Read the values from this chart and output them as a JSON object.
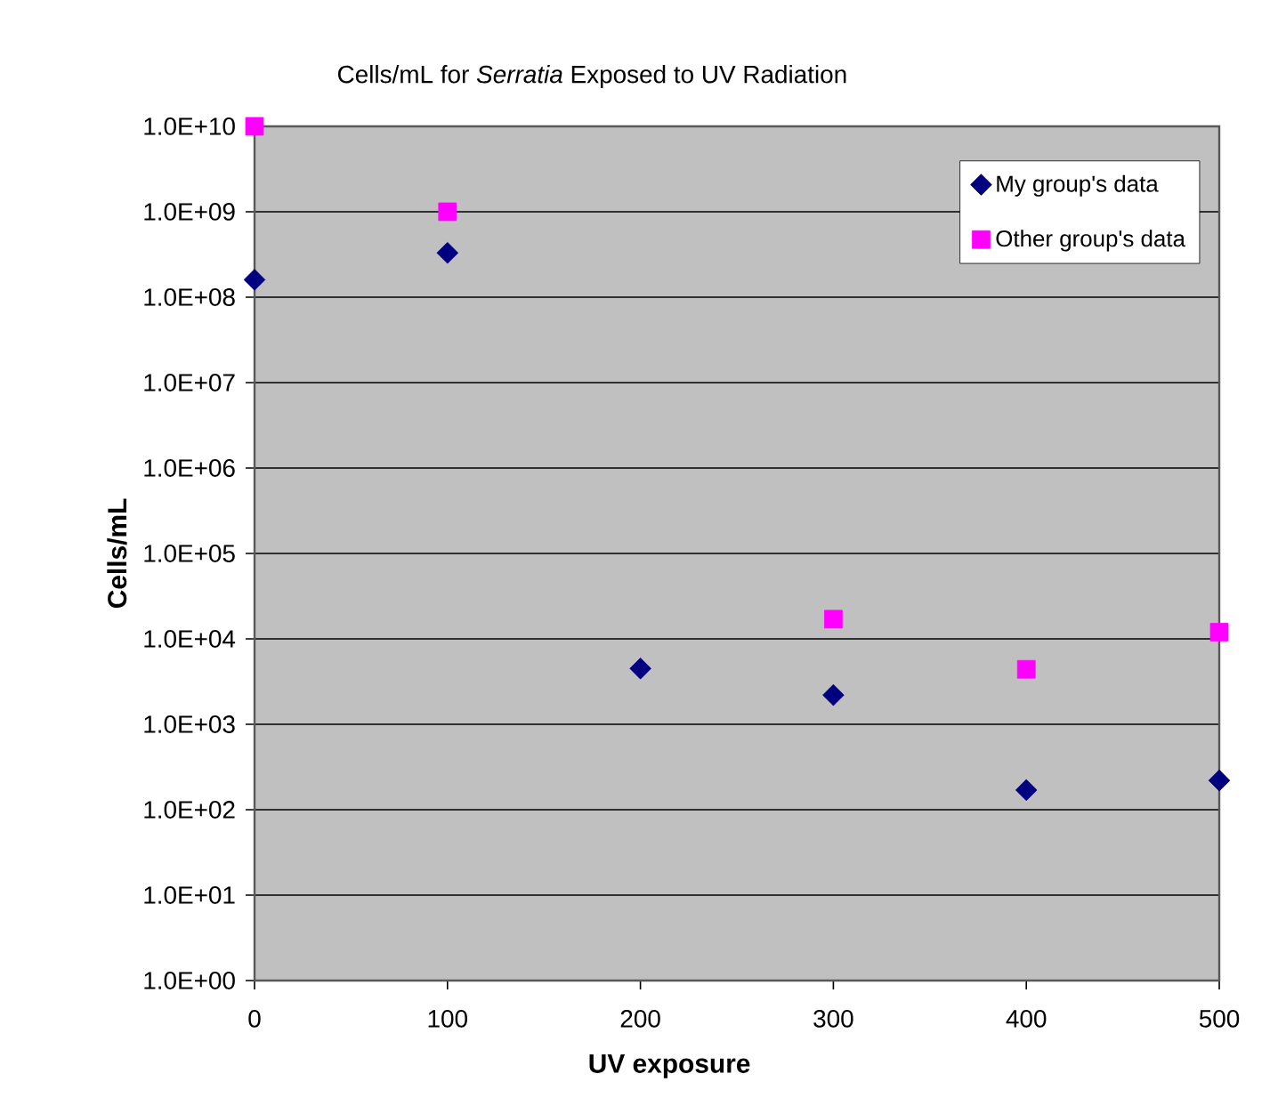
{
  "chart_data": {
    "type": "scatter",
    "title": "Cells/mL for *Serratia* Exposed to UV Radiation",
    "xlabel": "UV exposure",
    "ylabel": "Cells/mL",
    "log": "y",
    "grid": "y",
    "legend": "top right",
    "xlim": [
      0,
      500
    ],
    "xticks": [
      0,
      100,
      200,
      300,
      400,
      500
    ],
    "ylim": [
      1,
      10000000000
    ],
    "yticks": [
      {
        "value": 1,
        "label": "1.0E+00"
      },
      {
        "value": 10,
        "label": "1.0E+01"
      },
      {
        "value": 100,
        "label": "1.0E+02"
      },
      {
        "value": 1000,
        "label": "1.0E+03"
      },
      {
        "value": 10000,
        "label": "1.0E+04"
      },
      {
        "value": 100000,
        "label": "1.0E+05"
      },
      {
        "value": 1000000,
        "label": "1.0E+06"
      },
      {
        "value": 10000000,
        "label": "1.0E+07"
      },
      {
        "value": 100000000,
        "label": "1.0E+08"
      },
      {
        "value": 1000000000,
        "label": "1.0E+09"
      },
      {
        "value": 10000000000,
        "label": "1.0E+10"
      }
    ],
    "x": [
      0,
      100,
      200,
      300,
      400,
      500
    ],
    "series": [
      {
        "name": "My group's data",
        "color": "#000080",
        "marker": "diamond",
        "values": [
          160000000,
          330000000,
          4500,
          2200,
          170,
          220
        ]
      },
      {
        "name": "Other group's data",
        "color": "#ff00ff",
        "marker": "square",
        "values": [
          10000000000,
          1000000000,
          null,
          17000,
          4400,
          12000
        ]
      }
    ]
  }
}
